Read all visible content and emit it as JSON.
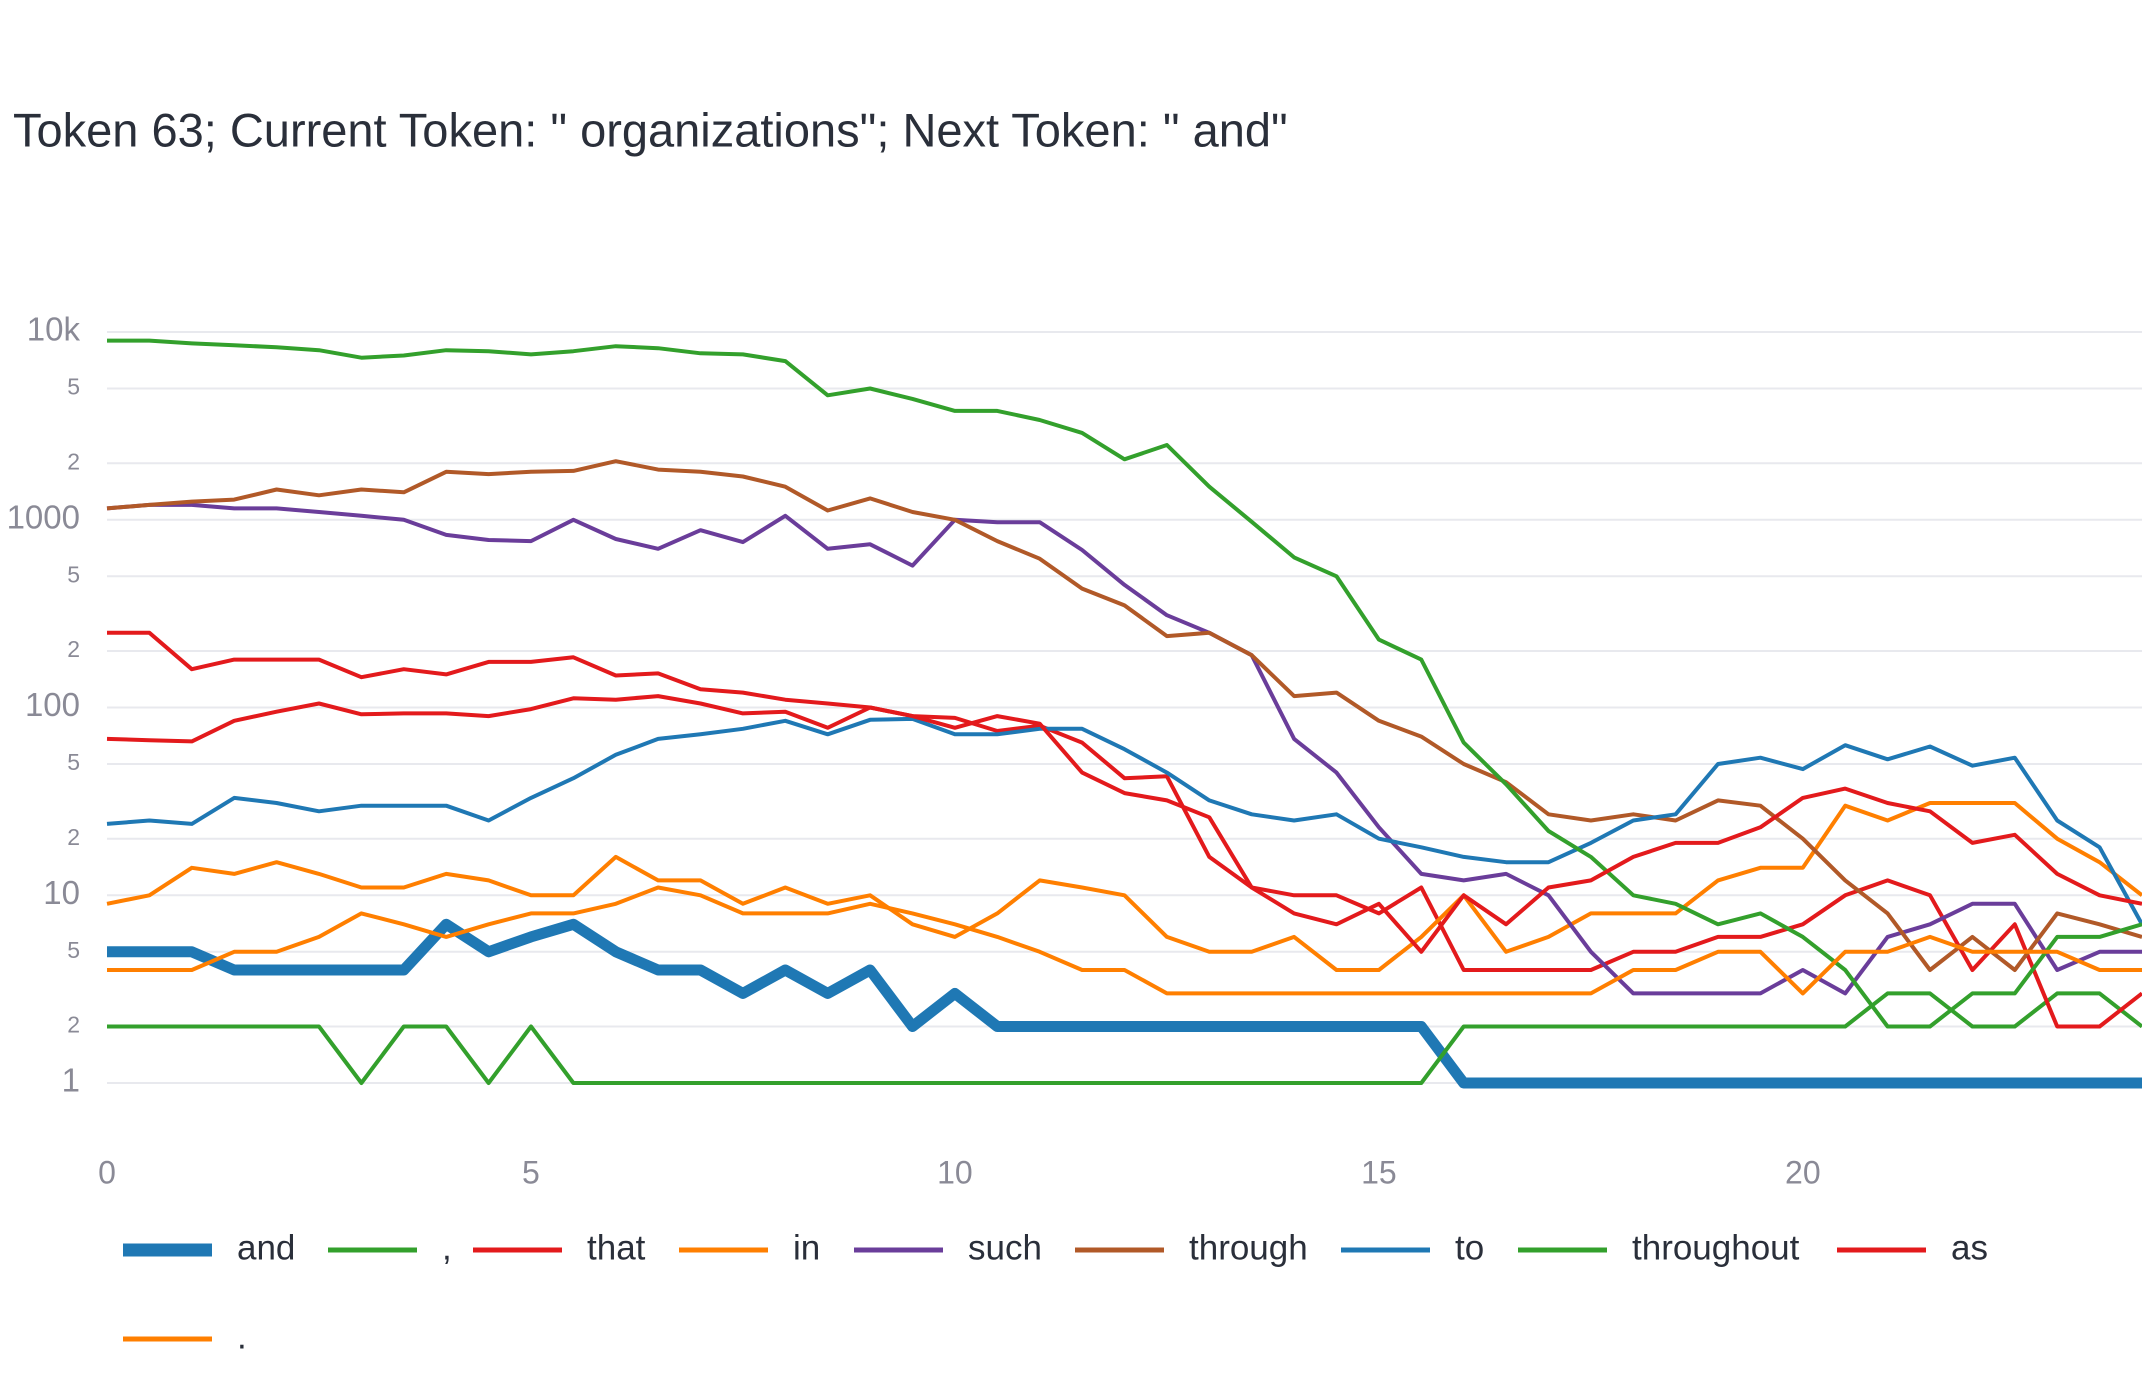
{
  "chart_data": {
    "type": "line",
    "title": "Token 63; Current Token: \" organizations\"; Next Token: \" and\"",
    "log_y": true,
    "grid": true,
    "legend": "bottom",
    "xlim": [
      0,
      24
    ],
    "xticks": [
      0,
      5,
      10,
      15,
      20
    ],
    "ylim": [
      1,
      10000
    ],
    "yticks": [
      {
        "value": 10000,
        "label": "10k"
      },
      {
        "value": 5000,
        "label": "5"
      },
      {
        "value": 2000,
        "label": "2"
      },
      1000,
      {
        "value": 500,
        "label": "5"
      },
      {
        "value": 200,
        "label": "2"
      },
      100,
      {
        "value": 50,
        "label": "5"
      },
      {
        "value": 20,
        "label": "2"
      },
      10,
      5,
      2,
      1
    ],
    "x": [
      0,
      0.5,
      1,
      1.5,
      2,
      2.5,
      3,
      3.5,
      4,
      4.5,
      5,
      5.5,
      6,
      6.5,
      7,
      7.5,
      8,
      8.5,
      9,
      9.5,
      10,
      10.5,
      11,
      11.5,
      12,
      12.5,
      13,
      13.5,
      14,
      14.5,
      15,
      15.5,
      16,
      16.5,
      17,
      17.5,
      18,
      18.5,
      19,
      19.5,
      20,
      20.5,
      21,
      21.5,
      22,
      22.5,
      23,
      23.5,
      24
    ],
    "series": [
      {
        "name": "and",
        "color": "#1f78b4",
        "values": [
          5,
          5,
          5,
          4,
          4,
          4,
          4,
          4,
          7,
          5,
          6,
          7,
          5,
          4,
          4,
          3,
          4,
          3,
          4,
          2,
          3,
          2,
          2,
          2,
          2,
          2,
          2,
          2,
          2,
          2,
          2,
          2,
          1,
          1,
          1,
          1,
          1,
          1,
          1,
          1,
          1,
          1,
          1,
          1,
          1,
          1,
          1,
          1,
          1
        ]
      },
      {
        "name": ",",
        "color": "#33a02c",
        "values": [
          2,
          2,
          2,
          2,
          2,
          2,
          1,
          2,
          2,
          1,
          2,
          1,
          1,
          1,
          1,
          1,
          1,
          1,
          1,
          1,
          1,
          1,
          1,
          1,
          1,
          1,
          1,
          1,
          1,
          1,
          1,
          1,
          2,
          2,
          2,
          2,
          2,
          2,
          2,
          2,
          2,
          2,
          3,
          3,
          2,
          2,
          3,
          3,
          2
        ]
      },
      {
        "name": "that",
        "color": "#e31a1c",
        "values": [
          250,
          250,
          160,
          180,
          180,
          180,
          145,
          160,
          150,
          175,
          175,
          185,
          148,
          152,
          125,
          120,
          110,
          105,
          100,
          90,
          88,
          75,
          80,
          65,
          42,
          43,
          16,
          11,
          10,
          10,
          8,
          11,
          4,
          4,
          4,
          4,
          5,
          5,
          6,
          6,
          7,
          10,
          12,
          10,
          4,
          7,
          2,
          2,
          3
        ]
      },
      {
        "name": "in",
        "color": "#ff7f00",
        "values": [
          9,
          10,
          14,
          13,
          15,
          13,
          11,
          11,
          13,
          12,
          10,
          10,
          16,
          12,
          12,
          9,
          11,
          9,
          10,
          7,
          6,
          8,
          12,
          11,
          10,
          6,
          5,
          5,
          6,
          4,
          4,
          6,
          10,
          5,
          6,
          8,
          8,
          8,
          12,
          14,
          14,
          30,
          25,
          31,
          31,
          31,
          20,
          15,
          10
        ]
      },
      {
        "name": "such",
        "color": "#6a3d9a",
        "values": [
          1150,
          1200,
          1200,
          1150,
          1150,
          1100,
          1050,
          1000,
          830,
          780,
          770,
          1000,
          790,
          700,
          880,
          760,
          1050,
          700,
          740,
          570,
          1000,
          970,
          970,
          690,
          450,
          310,
          250,
          190,
          68,
          45,
          23,
          13,
          12,
          13,
          10,
          5,
          3,
          3,
          3,
          3,
          4,
          3,
          6,
          7,
          9,
          9,
          4,
          5,
          5
        ]
      },
      {
        "name": "through",
        "color": "#b15928",
        "values": [
          1150,
          1200,
          1250,
          1280,
          1450,
          1350,
          1450,
          1400,
          1800,
          1750,
          1800,
          1820,
          2050,
          1850,
          1800,
          1700,
          1500,
          1120,
          1300,
          1100,
          1000,
          770,
          620,
          430,
          350,
          240,
          250,
          190,
          115,
          120,
          85,
          70,
          50,
          40,
          27,
          25,
          27,
          25,
          32,
          30,
          20,
          12,
          8,
          4,
          6,
          4,
          8,
          7,
          6
        ]
      },
      {
        "name": "to",
        "color": "#1f78b4",
        "values": [
          24,
          25,
          24,
          33,
          31,
          28,
          30,
          30,
          30,
          25,
          33,
          42,
          56,
          68,
          72,
          77,
          85,
          72,
          86,
          87,
          72,
          72,
          77,
          77,
          60,
          45,
          32,
          27,
          25,
          27,
          20,
          18,
          16,
          15,
          15,
          19,
          25,
          27,
          50,
          54,
          47,
          63,
          53,
          62,
          49,
          54,
          25,
          18,
          7
        ]
      },
      {
        "name": "throughout",
        "color": "#33a02c",
        "values": [
          9000,
          9000,
          8700,
          8500,
          8300,
          8000,
          7300,
          7500,
          8000,
          7900,
          7600,
          7900,
          8400,
          8200,
          7700,
          7600,
          7000,
          4600,
          5000,
          4400,
          3800,
          3800,
          3400,
          2900,
          2100,
          2500,
          1500,
          975,
          630,
          500,
          230,
          180,
          65,
          39,
          22,
          16,
          10,
          9,
          7,
          8,
          6,
          4,
          2,
          2,
          3,
          3,
          6,
          6,
          7
        ]
      },
      {
        "name": "as",
        "color": "#e31a1c",
        "values": [
          68,
          67,
          66,
          85,
          95,
          105,
          92,
          93,
          93,
          90,
          98,
          112,
          110,
          115,
          105,
          93,
          95,
          78,
          100,
          90,
          78,
          90,
          82,
          45,
          35,
          32,
          26,
          11,
          8,
          7,
          9,
          5,
          10,
          7,
          11,
          12,
          16,
          19,
          19,
          23,
          33,
          37,
          31,
          28,
          19,
          21,
          13,
          10,
          9
        ]
      },
      {
        "name": ".",
        "color": "#ff7f00",
        "values": [
          4,
          4,
          4,
          5,
          5,
          6,
          8,
          7,
          6,
          7,
          8,
          8,
          9,
          11,
          10,
          8,
          8,
          8,
          9,
          8,
          7,
          6,
          5,
          4,
          4,
          3,
          3,
          3,
          3,
          3,
          3,
          3,
          3,
          3,
          3,
          3,
          4,
          4,
          5,
          5,
          3,
          5,
          5,
          6,
          5,
          5,
          5,
          4,
          4
        ]
      }
    ]
  }
}
